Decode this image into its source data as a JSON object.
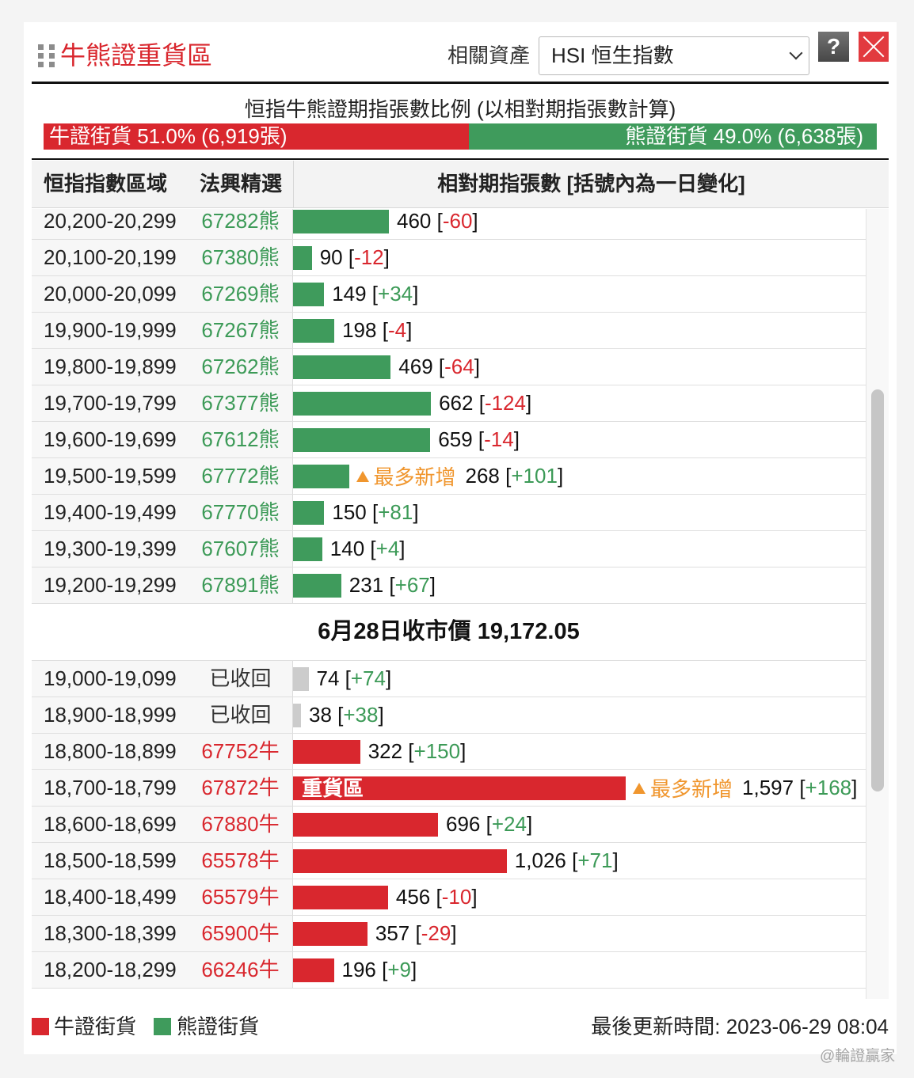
{
  "header": {
    "title": "牛熊證重貨區",
    "asset_label": "相關資產",
    "asset_selected": "HSI 恒生指數",
    "help_label": "?"
  },
  "icons": {
    "drag": "drag-handle-icon",
    "select": "chevron-down-icon",
    "close": "close-icon",
    "tag": "triangle-up-icon"
  },
  "ratio": {
    "title": "恒指牛熊證期指張數比例 (以相對期指張數計算)",
    "bull": {
      "label": "牛證街貨 51.0% (6,919張)",
      "percent": 51.0
    },
    "bear": {
      "label": "熊證街貨 49.0% (6,638張)",
      "percent": 49.0
    }
  },
  "table": {
    "columns": {
      "range": "恒指指數區域",
      "pick": "法興精選",
      "contracts": "相對期指張數 [括號內為一日變化]"
    },
    "bear_rows": [
      {
        "range": "20,200-20,299",
        "code": "67282熊",
        "type": "bear",
        "value": 460,
        "value_label": "460",
        "change": "-60"
      },
      {
        "range": "20,100-20,199",
        "code": "67380熊",
        "type": "bear",
        "value": 90,
        "value_label": "90",
        "change": "-12"
      },
      {
        "range": "20,000-20,099",
        "code": "67269熊",
        "type": "bear",
        "value": 149,
        "value_label": "149",
        "change": "+34"
      },
      {
        "range": "19,900-19,999",
        "code": "67267熊",
        "type": "bear",
        "value": 198,
        "value_label": "198",
        "change": "-4"
      },
      {
        "range": "19,800-19,899",
        "code": "67262熊",
        "type": "bear",
        "value": 469,
        "value_label": "469",
        "change": "-64"
      },
      {
        "range": "19,700-19,799",
        "code": "67377熊",
        "type": "bear",
        "value": 662,
        "value_label": "662",
        "change": "-124"
      },
      {
        "range": "19,600-19,699",
        "code": "67612熊",
        "type": "bear",
        "value": 659,
        "value_label": "659",
        "change": "-14"
      },
      {
        "range": "19,500-19,599",
        "code": "67772熊",
        "type": "bear",
        "value": 268,
        "value_label": "268",
        "change": "+101",
        "tag": "最多新增"
      },
      {
        "range": "19,400-19,499",
        "code": "67770熊",
        "type": "bear",
        "value": 150,
        "value_label": "150",
        "change": "+81"
      },
      {
        "range": "19,300-19,399",
        "code": "67607熊",
        "type": "bear",
        "value": 140,
        "value_label": "140",
        "change": "+4"
      },
      {
        "range": "19,200-19,299",
        "code": "67891熊",
        "type": "bear",
        "value": 231,
        "value_label": "231",
        "change": "+67"
      }
    ],
    "closing_price": "6月28日收市價 19,172.05",
    "bull_rows": [
      {
        "range": "19,000-19,099",
        "code": "已收回",
        "type": "recovered",
        "value": 74,
        "value_label": "74",
        "change": "+74"
      },
      {
        "range": "18,900-18,999",
        "code": "已收回",
        "type": "recovered",
        "value": 38,
        "value_label": "38",
        "change": "+38"
      },
      {
        "range": "18,800-18,899",
        "code": "67752牛",
        "type": "bull",
        "value": 322,
        "value_label": "322",
        "change": "+150"
      },
      {
        "range": "18,700-18,799",
        "code": "67872牛",
        "type": "bull",
        "value": 1597,
        "value_label": "1,597",
        "change": "+168",
        "bar_text": "重貨區",
        "tag": "最多新增"
      },
      {
        "range": "18,600-18,699",
        "code": "67880牛",
        "type": "bull",
        "value": 696,
        "value_label": "696",
        "change": "+24"
      },
      {
        "range": "18,500-18,599",
        "code": "65578牛",
        "type": "bull",
        "value": 1026,
        "value_label": "1,026",
        "change": "+71"
      },
      {
        "range": "18,400-18,499",
        "code": "65579牛",
        "type": "bull",
        "value": 456,
        "value_label": "456",
        "change": "-10"
      },
      {
        "range": "18,300-18,399",
        "code": "65900牛",
        "type": "bull",
        "value": 357,
        "value_label": "357",
        "change": "-29"
      },
      {
        "range": "18,200-18,299",
        "code": "66246牛",
        "type": "bull",
        "value": 196,
        "value_label": "196",
        "change": "+9"
      }
    ]
  },
  "legend": {
    "bull": "牛證街貨",
    "bear": "熊證街貨"
  },
  "last_updated": "最後更新時間: 2023-06-29 08:04",
  "watermark": "@輪證贏家",
  "colors": {
    "bull": "#d9272e",
    "bear": "#3f9b5c",
    "recovered": "#cccccc",
    "bull_code": "#d9272e",
    "bear_code": "#3c9a57",
    "positive": "#3c9a57",
    "negative": "#d9272e",
    "tag": "#f0962e",
    "title": "#d9272e"
  }
}
